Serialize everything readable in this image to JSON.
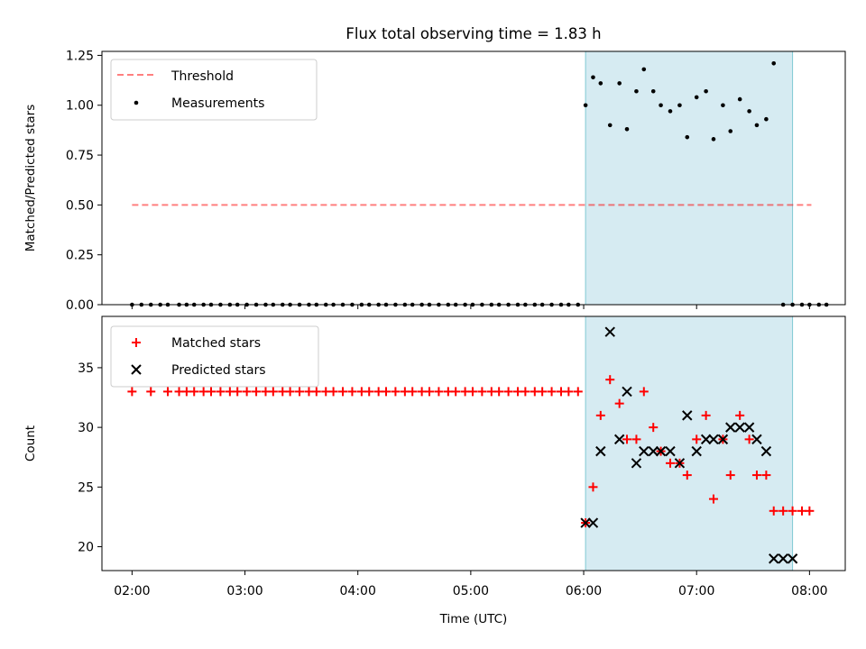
{
  "chart_data": [
    {
      "type": "scatter",
      "title": "Flux total observing time = 1.83 h",
      "ylabel": "Matched/Predicted stars",
      "xlabel": "",
      "xlim": [
        "01:44",
        "08:19"
      ],
      "ylim": [
        0,
        1.27
      ],
      "yticks": [
        0.0,
        0.25,
        0.5,
        0.75,
        1.0,
        1.25
      ],
      "ytick_labels": [
        "0.00",
        "0.25",
        "0.50",
        "0.75",
        "1.00",
        "1.25"
      ],
      "grid": false,
      "legend": "top-left",
      "shaded_span": {
        "x0": "06:01",
        "x1": "07:51",
        "color": "#add8e6"
      },
      "threshold": {
        "name": "Threshold",
        "value": 0.5,
        "x0": "02:00",
        "x1": "08:01",
        "color": "#ff0000"
      },
      "series": [
        {
          "name": "Measurements",
          "color": "#000000",
          "x": [
            "02:00",
            "02:05",
            "02:10",
            "02:15",
            "02:19",
            "02:25",
            "02:29",
            "02:33",
            "02:38",
            "02:42",
            "02:47",
            "02:52",
            "02:56",
            "03:01",
            "03:06",
            "03:11",
            "03:15",
            "03:20",
            "03:24",
            "03:29",
            "03:34",
            "03:38",
            "03:43",
            "03:47",
            "03:52",
            "03:57",
            "04:02",
            "04:06",
            "04:11",
            "04:15",
            "04:20",
            "04:25",
            "04:29",
            "04:34",
            "04:38",
            "04:43",
            "04:48",
            "04:52",
            "04:57",
            "05:01",
            "05:06",
            "05:11",
            "05:15",
            "05:20",
            "05:25",
            "05:29",
            "05:34",
            "05:38",
            "05:43",
            "05:48",
            "05:52",
            "05:57",
            "06:01",
            "06:05",
            "06:09",
            "06:14",
            "06:19",
            "06:23",
            "06:28",
            "06:32",
            "06:37",
            "06:41",
            "06:46",
            "06:51",
            "06:55",
            "07:00",
            "07:05",
            "07:09",
            "07:14",
            "07:18",
            "07:23",
            "07:28",
            "07:32",
            "07:37",
            "07:41",
            "07:46",
            "07:51",
            "07:56",
            "08:00",
            "08:05",
            "08:09"
          ],
          "y": [
            0.0,
            0.0,
            0.0,
            0.0,
            0.0,
            0.0,
            0.0,
            0.0,
            0.0,
            0.0,
            0.0,
            0.0,
            0.0,
            0.0,
            0.0,
            0.0,
            0.0,
            0.0,
            0.0,
            0.0,
            0.0,
            0.0,
            0.0,
            0.0,
            0.0,
            0.0,
            0.0,
            0.0,
            0.0,
            0.0,
            0.0,
            0.0,
            0.0,
            0.0,
            0.0,
            0.0,
            0.0,
            0.0,
            0.0,
            0.0,
            0.0,
            0.0,
            0.0,
            0.0,
            0.0,
            0.0,
            0.0,
            0.0,
            0.0,
            0.0,
            0.0,
            0.0,
            1.0,
            1.14,
            1.11,
            0.9,
            1.11,
            0.88,
            1.07,
            1.18,
            1.07,
            1.0,
            0.97,
            1.0,
            0.84,
            1.04,
            1.07,
            0.83,
            1.0,
            0.87,
            1.03,
            0.97,
            0.9,
            0.93,
            1.21,
            0.0,
            0.0,
            0.0,
            0.0,
            0.0,
            0.0
          ]
        }
      ]
    },
    {
      "type": "scatter",
      "title": "",
      "ylabel": "Count",
      "xlabel": "Time (UTC)",
      "xlim": [
        "01:44",
        "08:19"
      ],
      "xticks": [
        "02:00",
        "03:00",
        "04:00",
        "05:00",
        "06:00",
        "07:00",
        "08:00"
      ],
      "ylim": [
        18,
        39.3
      ],
      "yticks": [
        20,
        25,
        30,
        35
      ],
      "grid": false,
      "legend": "top-left",
      "shaded_span": {
        "x0": "06:01",
        "x1": "07:51",
        "color": "#add8e6"
      },
      "series": [
        {
          "name": "Matched stars",
          "marker": "+",
          "color": "#ff0000",
          "x": [
            "02:00",
            "02:10",
            "02:19",
            "02:25",
            "02:29",
            "02:33",
            "02:38",
            "02:42",
            "02:47",
            "02:52",
            "02:56",
            "03:01",
            "03:06",
            "03:11",
            "03:15",
            "03:20",
            "03:24",
            "03:29",
            "03:34",
            "03:38",
            "03:43",
            "03:47",
            "03:52",
            "03:57",
            "04:02",
            "04:06",
            "04:11",
            "04:15",
            "04:20",
            "04:25",
            "04:29",
            "04:34",
            "04:38",
            "04:43",
            "04:48",
            "04:52",
            "04:57",
            "05:01",
            "05:06",
            "05:11",
            "05:15",
            "05:20",
            "05:25",
            "05:29",
            "05:34",
            "05:38",
            "05:43",
            "05:48",
            "05:52",
            "05:57",
            "06:01",
            "06:05",
            "06:09",
            "06:14",
            "06:19",
            "06:23",
            "06:28",
            "06:32",
            "06:37",
            "06:41",
            "06:46",
            "06:51",
            "06:55",
            "07:00",
            "07:05",
            "07:09",
            "07:14",
            "07:18",
            "07:23",
            "07:28",
            "07:32",
            "07:37",
            "07:41",
            "07:46",
            "07:51",
            "07:56",
            "08:00"
          ],
          "y": [
            33,
            33,
            33,
            33,
            33,
            33,
            33,
            33,
            33,
            33,
            33,
            33,
            33,
            33,
            33,
            33,
            33,
            33,
            33,
            33,
            33,
            33,
            33,
            33,
            33,
            33,
            33,
            33,
            33,
            33,
            33,
            33,
            33,
            33,
            33,
            33,
            33,
            33,
            33,
            33,
            33,
            33,
            33,
            33,
            33,
            33,
            33,
            33,
            33,
            33,
            22,
            25,
            31,
            34,
            32,
            29,
            29,
            33,
            30,
            28,
            27,
            27,
            26,
            29,
            31,
            24,
            29,
            26,
            31,
            29,
            26,
            26,
            23,
            23,
            23,
            23,
            23
          ]
        },
        {
          "name": "Predicted stars",
          "marker": "x",
          "color": "#000000",
          "x": [
            "06:01",
            "06:05",
            "06:09",
            "06:14",
            "06:19",
            "06:23",
            "06:28",
            "06:32",
            "06:37",
            "06:41",
            "06:46",
            "06:51",
            "06:55",
            "07:00",
            "07:05",
            "07:09",
            "07:14",
            "07:18",
            "07:23",
            "07:28",
            "07:32",
            "07:37",
            "07:41",
            "07:46",
            "07:51"
          ],
          "y": [
            22,
            22,
            28,
            38,
            29,
            33,
            27,
            28,
            28,
            28,
            28,
            27,
            31,
            28,
            29,
            29,
            29,
            30,
            30,
            30,
            29,
            28,
            19,
            19,
            19
          ]
        }
      ]
    }
  ]
}
